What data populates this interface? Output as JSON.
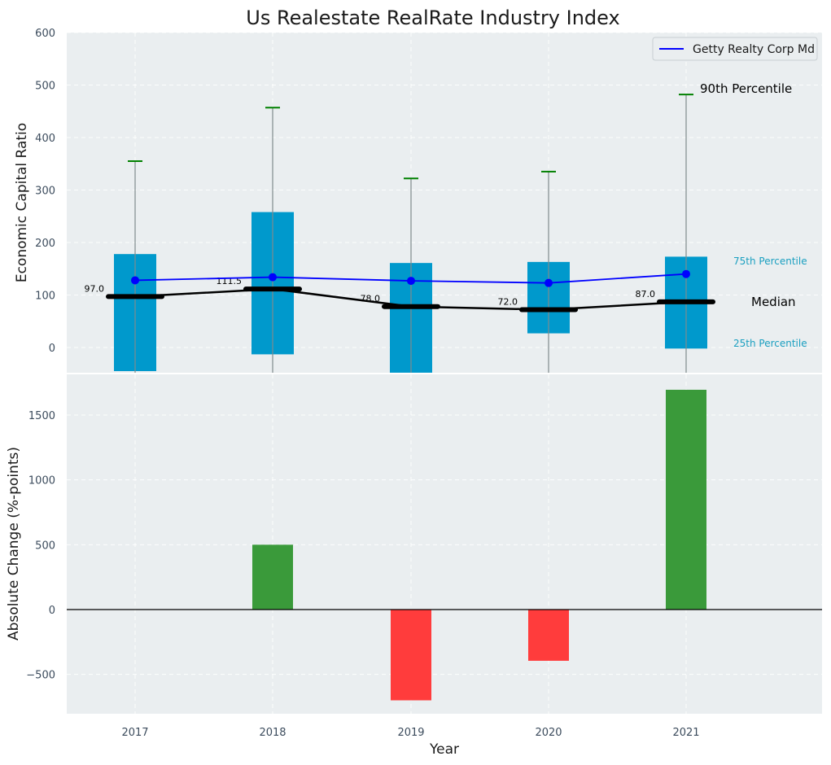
{
  "chart_data": [
    {
      "type": "box",
      "title": "Us Realestate RealRate Industry Index",
      "ylabel": "Economic Capital Ratio",
      "xlabel": "",
      "ylim": [
        -50,
        600
      ],
      "yticks": [
        0,
        100,
        200,
        300,
        400,
        500,
        600
      ],
      "categories": [
        "2017",
        "2018",
        "2019",
        "2020",
        "2021"
      ],
      "p25": [
        -45,
        -13,
        -48,
        27,
        -2
      ],
      "p75": [
        178,
        258,
        161,
        163,
        173
      ],
      "p90": [
        355,
        457,
        322,
        335,
        482
      ],
      "median": [
        97.0,
        111.5,
        78.0,
        72.0,
        87.0
      ],
      "median_labels": [
        "97.0",
        "111.5",
        "78.0",
        "72.0",
        "87.0"
      ],
      "series": [
        {
          "name": "Getty Realty Corp Md",
          "values": [
            128,
            134,
            127,
            123,
            140
          ],
          "color": "#0000ff"
        }
      ],
      "annotations": {
        "p90": "90th Percentile",
        "p75": "75th Percentile",
        "median": "Median",
        "p25": "25th Percentile"
      },
      "legend": {
        "position": "top-right"
      },
      "grid": true
    },
    {
      "type": "bar",
      "ylabel": "Absolute Change (%-points)",
      "xlabel": "Year",
      "ylim": [
        -800,
        1850
      ],
      "yticks": [
        -500,
        0,
        500,
        1000,
        1500
      ],
      "ytick_labels": [
        "−500",
        "0",
        "500",
        "1000",
        "1500"
      ],
      "categories": [
        "2017",
        "2018",
        "2019",
        "2020",
        "2021"
      ],
      "values": [
        0,
        500,
        -700,
        -395,
        1695
      ],
      "grid": true
    }
  ],
  "colors": {
    "background": "#eaeef0",
    "box": "#0099cc",
    "whisker": "#7f8c8d",
    "p90_cap": "#008000",
    "median": "#000000",
    "positive": "#3a9a3a",
    "negative": "#ff3c3c",
    "pct_text": "#1a9fc0"
  }
}
